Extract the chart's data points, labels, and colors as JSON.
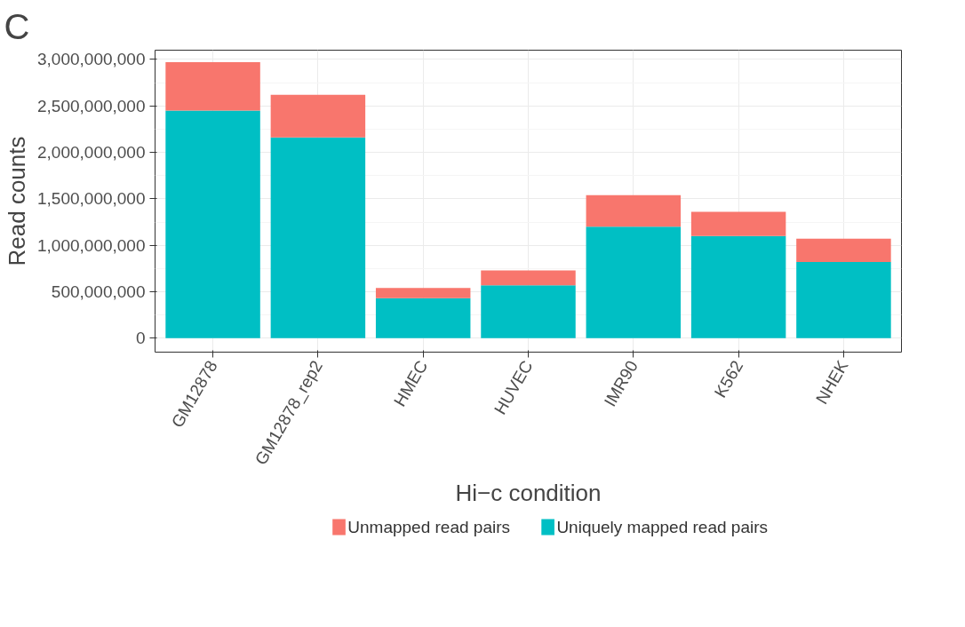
{
  "chart_data": {
    "type": "bar",
    "stacked": true,
    "xlabel": "Hi−c condition",
    "ylabel": "Read counts",
    "annotations": [
      "C"
    ],
    "categories": [
      "GM12878",
      "GM12878_rep2",
      "HMEC",
      "HUVEC",
      "IMR90",
      "K562",
      "NHEK"
    ],
    "series": [
      {
        "name": "Uniquely mapped read pairs",
        "color": "#00bfc4",
        "values": [
          2450000000,
          2160000000,
          430000000,
          570000000,
          1200000000,
          1100000000,
          820000000
        ]
      },
      {
        "name": "Unmapped read pairs",
        "color": "#f8766d",
        "values": [
          520000000,
          460000000,
          110000000,
          160000000,
          340000000,
          260000000,
          250000000
        ]
      }
    ],
    "ylim": [
      -150000000,
      3100000000
    ],
    "yticks": [
      {
        "value": 0,
        "label": "0"
      },
      {
        "value": 500000000,
        "label": "500,000,000"
      },
      {
        "value": 1000000000,
        "label": "1,000,000,000"
      },
      {
        "value": 1500000000,
        "label": "1,500,000,000"
      },
      {
        "value": 2000000000,
        "label": "2,000,000,000"
      },
      {
        "value": 2500000000,
        "label": "2,500,000,000"
      },
      {
        "value": 3000000000,
        "label": "3,000,000,000"
      }
    ],
    "grid": true,
    "legend": "bottom"
  }
}
